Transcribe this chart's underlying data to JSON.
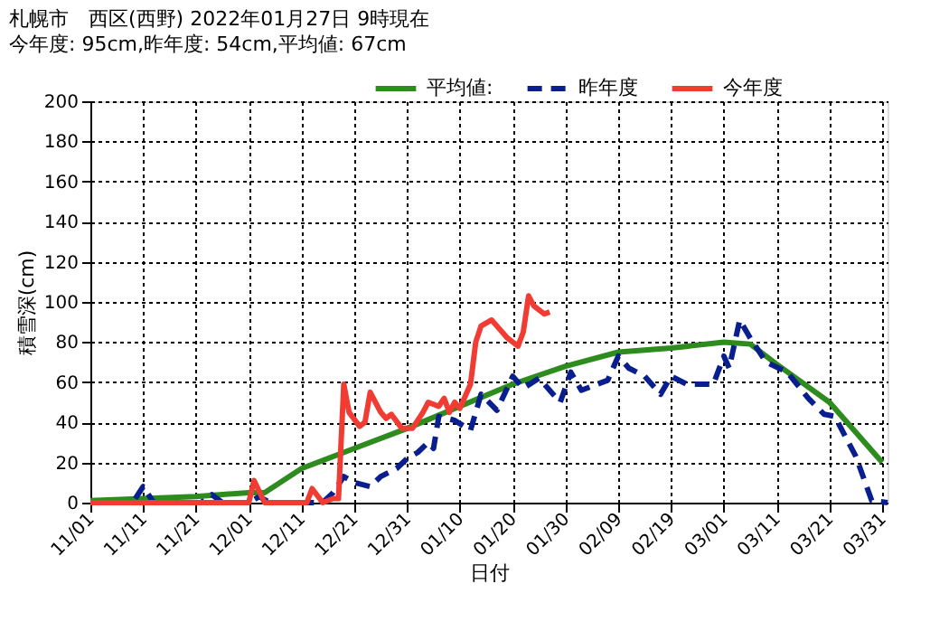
{
  "chart_data": {
    "type": "line",
    "title": "札幌市　西区(西野)  2022年01月27日 9時現在",
    "subtitle": "今年度: 95cm,昨年度: 54cm,平均値: 67cm",
    "xlabel": "日付",
    "ylabel": "積雪深(cm)",
    "xlim": [
      "2021-11-01",
      "2022-04-01"
    ],
    "ylim": [
      0,
      200
    ],
    "xticks": [
      {
        "value": "2021-11-01",
        "label": "11/01"
      },
      {
        "value": "2021-11-11",
        "label": "11/11"
      },
      {
        "value": "2021-11-21",
        "label": "11/21"
      },
      {
        "value": "2021-12-01",
        "label": "12/01"
      },
      {
        "value": "2021-12-11",
        "label": "12/11"
      },
      {
        "value": "2021-12-21",
        "label": "12/21"
      },
      {
        "value": "2021-12-31",
        "label": "12/31"
      },
      {
        "value": "2022-01-10",
        "label": "01/10"
      },
      {
        "value": "2022-01-20",
        "label": "01/20"
      },
      {
        "value": "2022-01-30",
        "label": "01/30"
      },
      {
        "value": "2022-02-09",
        "label": "02/09"
      },
      {
        "value": "2022-02-19",
        "label": "02/19"
      },
      {
        "value": "2022-03-01",
        "label": "03/01"
      },
      {
        "value": "2022-03-11",
        "label": "03/11"
      },
      {
        "value": "2022-03-21",
        "label": "03/21"
      },
      {
        "value": "2022-03-31",
        "label": "03/31"
      }
    ],
    "yticks": [
      0,
      20,
      40,
      60,
      80,
      100,
      120,
      140,
      160,
      180,
      200
    ],
    "grid": true,
    "legend": "top right",
    "series": [
      {
        "name": "平均値:",
        "color": "#2e8b1e",
        "line_style": "solid",
        "x": [
          "2021-11-01",
          "2021-11-11",
          "2021-11-21",
          "2021-12-01",
          "2021-12-04",
          "2021-12-11",
          "2021-12-21",
          "2021-12-31",
          "2022-01-10",
          "2022-01-20",
          "2022-01-30",
          "2022-02-09",
          "2022-02-19",
          "2022-03-01",
          "2022-03-06",
          "2022-03-11",
          "2022-03-21",
          "2022-03-31"
        ],
        "values": [
          1,
          2,
          3,
          5,
          5,
          17,
          27,
          37,
          48,
          59,
          68,
          75,
          77,
          80,
          79,
          69,
          50,
          20
        ]
      },
      {
        "name": "昨年度",
        "color": "#0a1f8f",
        "line_style": "dashed",
        "x": [
          "2021-11-01",
          "2021-11-09",
          "2021-11-11",
          "2021-11-13",
          "2021-11-22",
          "2021-11-24",
          "2021-11-26",
          "2021-12-01",
          "2021-12-03",
          "2021-12-05",
          "2021-12-15",
          "2021-12-17",
          "2021-12-19",
          "2021-12-21",
          "2021-12-24",
          "2021-12-26",
          "2021-12-29",
          "2021-12-31",
          "2022-01-02",
          "2022-01-04",
          "2022-01-05",
          "2022-01-06",
          "2022-01-09",
          "2022-01-12",
          "2022-01-14",
          "2022-01-17",
          "2022-01-20",
          "2022-01-22",
          "2022-01-25",
          "2022-01-29",
          "2022-01-31",
          "2022-02-02",
          "2022-02-07",
          "2022-02-09",
          "2022-02-11",
          "2022-02-14",
          "2022-02-17",
          "2022-02-19",
          "2022-02-22",
          "2022-02-27",
          "2022-03-01",
          "2022-03-02",
          "2022-03-04",
          "2022-03-06",
          "2022-03-09",
          "2022-03-13",
          "2022-03-17",
          "2022-03-20",
          "2022-03-22",
          "2022-03-26",
          "2022-03-29",
          "2022-04-01"
        ],
        "values": [
          0,
          0,
          8,
          0,
          0,
          4,
          0,
          0,
          3,
          0,
          0,
          5,
          13,
          10,
          8,
          13,
          17,
          22,
          25,
          30,
          27,
          43,
          41,
          36,
          54,
          46,
          63,
          57,
          62,
          50,
          65,
          56,
          61,
          73,
          67,
          63,
          54,
          63,
          59,
          59,
          73,
          67,
          91,
          82,
          70,
          65,
          52,
          44,
          43,
          23,
          1,
          0
        ]
      },
      {
        "name": "今年度",
        "color": "#f03c32",
        "line_style": "solid",
        "x": [
          "2021-11-01",
          "2021-12-01",
          "2021-12-02",
          "2021-12-04",
          "2021-12-12",
          "2021-12-13",
          "2021-12-15",
          "2021-12-17",
          "2021-12-18",
          "2021-12-19",
          "2021-12-20",
          "2021-12-22",
          "2021-12-23",
          "2021-12-24",
          "2021-12-26",
          "2021-12-27",
          "2021-12-28",
          "2021-12-30",
          "2022-01-01",
          "2022-01-03",
          "2022-01-04",
          "2022-01-06",
          "2022-01-07",
          "2022-01-08",
          "2022-01-09",
          "2022-01-10",
          "2022-01-12",
          "2022-01-13",
          "2022-01-14",
          "2022-01-16",
          "2022-01-17",
          "2022-01-19",
          "2022-01-21",
          "2022-01-22",
          "2022-01-23",
          "2022-01-24",
          "2022-01-25",
          "2022-01-26",
          "2022-01-27"
        ],
        "values": [
          0,
          0,
          11,
          0,
          0,
          7,
          0,
          2,
          2,
          59,
          45,
          38,
          40,
          55,
          45,
          42,
          44,
          37,
          37,
          45,
          50,
          48,
          52,
          45,
          50,
          47,
          59,
          80,
          88,
          91,
          88,
          82,
          78,
          85,
          103,
          98,
          96,
          94,
          95
        ]
      }
    ]
  }
}
